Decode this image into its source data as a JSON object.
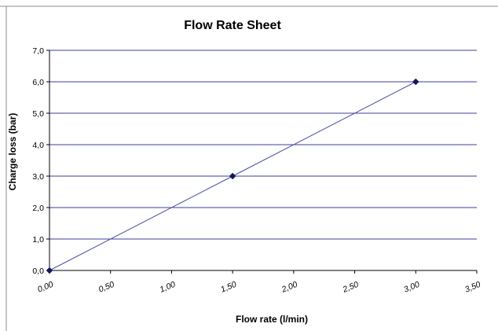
{
  "chart_data": {
    "type": "line",
    "title": "Flow Rate Sheet",
    "xlabel": "Flow rate (l/min)",
    "ylabel": "Charge loss (bar)",
    "xlim": [
      0,
      3.5
    ],
    "ylim": [
      0,
      7
    ],
    "x_ticks": [
      "0,00",
      "0,50",
      "1,00",
      "1,50",
      "2,00",
      "2,50",
      "3,00",
      "3,50"
    ],
    "x_tick_values": [
      0,
      0.5,
      1.0,
      1.5,
      2.0,
      2.5,
      3.0,
      3.5
    ],
    "y_ticks": [
      "0,0",
      "1,0",
      "2,0",
      "3,0",
      "4,0",
      "5,0",
      "6,0",
      "7,0"
    ],
    "y_tick_values": [
      0,
      1,
      2,
      3,
      4,
      5,
      6,
      7
    ],
    "grid": true,
    "legend": "none",
    "series": [
      {
        "x": [
          0,
          1.5,
          3.0
        ],
        "y": [
          0,
          3.0,
          6.0
        ],
        "marker": "diamond",
        "color": "#2E2E8C"
      }
    ],
    "colors": {
      "grid": "#3C3CA0",
      "line": "#4B4BA8",
      "marker": "#16165C",
      "axis": "#000000",
      "frame": "#8C8C8C"
    }
  }
}
